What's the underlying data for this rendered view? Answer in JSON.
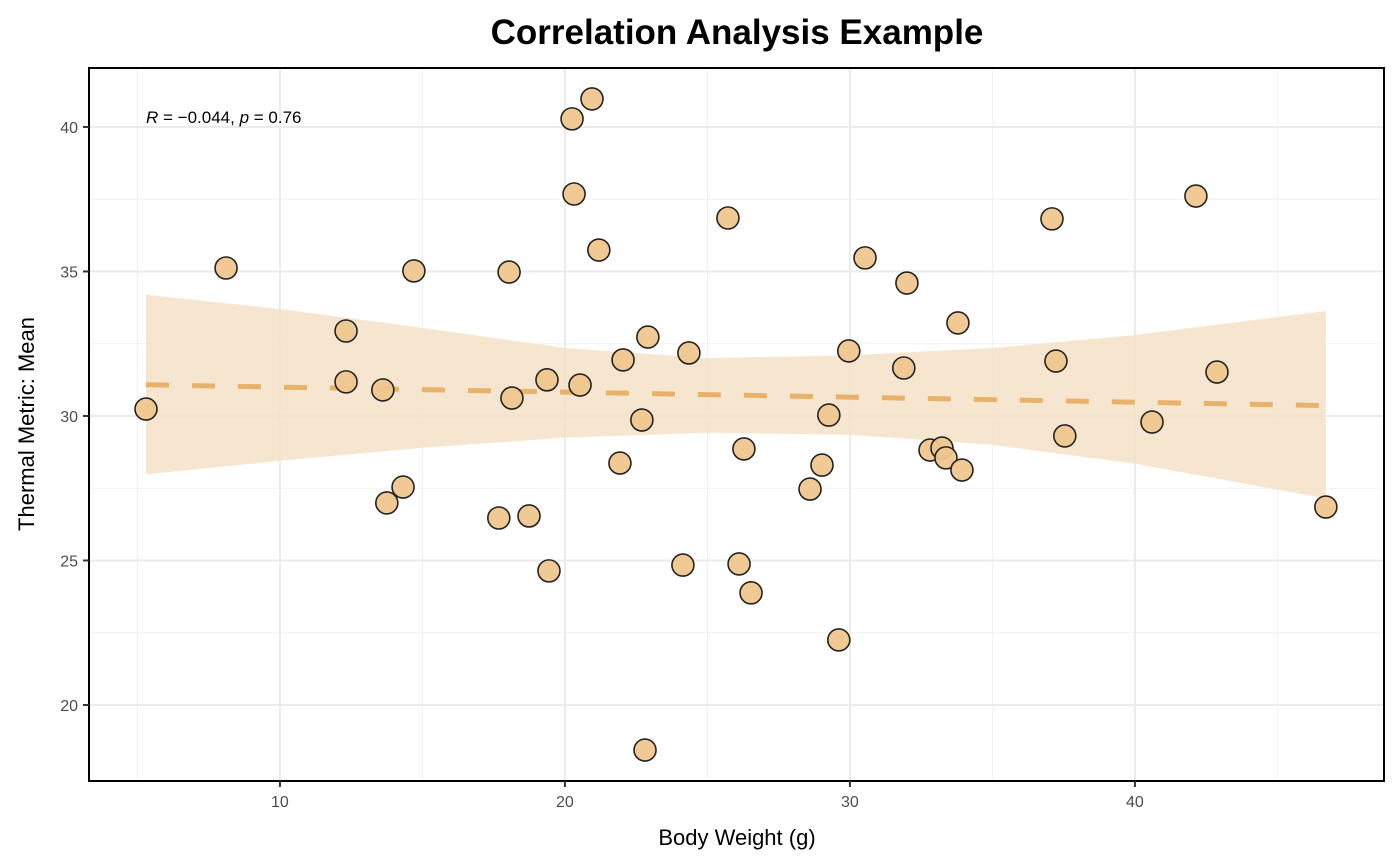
{
  "chart_data": {
    "type": "scatter",
    "title": "Correlation Analysis Example",
    "xlabel": "Body Weight (g)",
    "ylabel": "Thermal Metric: Mean",
    "xlim": [
      3.3,
      48.74
    ],
    "ylim": [
      17.37,
      42.04
    ],
    "xticks": [
      10,
      20,
      30,
      40
    ],
    "yticks": [
      20,
      25,
      30,
      35,
      40
    ],
    "x_minor_gridlines": [
      5,
      15,
      25,
      35,
      45
    ],
    "y_minor_gridlines": [
      22.5,
      27.5,
      32.5,
      37.5
    ],
    "grid": true,
    "legend": "none",
    "annotation": {
      "r_symbol": "R",
      "r_eq": " = ",
      "r_value": "−0.044",
      "sep": ", ",
      "p_symbol": "p",
      "p_eq": " = ",
      "p_value": "0.76",
      "x": 5.3,
      "y": 40
    },
    "colors": {
      "point_fill": "#EFC68E",
      "point_stroke": "#222222",
      "trend_line": "#E9B26A",
      "ribbon": "#F5E2C8"
    },
    "trend_line": {
      "style": "dashed",
      "x": [
        5.3,
        46.7
      ],
      "y": [
        31.08,
        30.36
      ]
    },
    "confidence_band": {
      "x": [
        5.3,
        10,
        15,
        20,
        25,
        30,
        35,
        40,
        46.7
      ],
      "lower": [
        27.98,
        28.45,
        28.9,
        29.25,
        29.42,
        29.35,
        29.0,
        28.35,
        27.15
      ],
      "upper": [
        34.2,
        33.7,
        33.05,
        32.35,
        32.0,
        32.1,
        32.35,
        32.8,
        33.63
      ]
    },
    "points": [
      {
        "x": 5.3,
        "y": 30.24
      },
      {
        "x": 8.11,
        "y": 35.12
      },
      {
        "x": 12.32,
        "y": 32.94
      },
      {
        "x": 12.32,
        "y": 31.18
      },
      {
        "x": 13.61,
        "y": 30.9
      },
      {
        "x": 13.75,
        "y": 26.99
      },
      {
        "x": 14.32,
        "y": 27.54
      },
      {
        "x": 14.7,
        "y": 35.02
      },
      {
        "x": 17.68,
        "y": 26.47
      },
      {
        "x": 18.04,
        "y": 34.98
      },
      {
        "x": 18.14,
        "y": 30.62
      },
      {
        "x": 18.74,
        "y": 26.54
      },
      {
        "x": 19.37,
        "y": 31.25
      },
      {
        "x": 19.44,
        "y": 24.64
      },
      {
        "x": 20.25,
        "y": 40.28
      },
      {
        "x": 20.32,
        "y": 37.68
      },
      {
        "x": 20.53,
        "y": 31.07
      },
      {
        "x": 20.95,
        "y": 40.97
      },
      {
        "x": 21.19,
        "y": 35.74
      },
      {
        "x": 21.93,
        "y": 28.37
      },
      {
        "x": 22.04,
        "y": 31.94
      },
      {
        "x": 22.7,
        "y": 29.86
      },
      {
        "x": 22.81,
        "y": 18.44
      },
      {
        "x": 22.91,
        "y": 32.73
      },
      {
        "x": 24.14,
        "y": 24.84
      },
      {
        "x": 24.35,
        "y": 32.18
      },
      {
        "x": 25.72,
        "y": 36.85
      },
      {
        "x": 26.11,
        "y": 24.88
      },
      {
        "x": 26.28,
        "y": 28.86
      },
      {
        "x": 26.53,
        "y": 23.88
      },
      {
        "x": 28.6,
        "y": 27.47
      },
      {
        "x": 29.02,
        "y": 28.3
      },
      {
        "x": 29.26,
        "y": 30.03
      },
      {
        "x": 29.61,
        "y": 22.25
      },
      {
        "x": 29.96,
        "y": 32.25
      },
      {
        "x": 30.53,
        "y": 35.47
      },
      {
        "x": 31.89,
        "y": 31.66
      },
      {
        "x": 32.0,
        "y": 34.6
      },
      {
        "x": 32.81,
        "y": 28.82
      },
      {
        "x": 33.23,
        "y": 28.89
      },
      {
        "x": 33.37,
        "y": 28.55
      },
      {
        "x": 33.79,
        "y": 33.22
      },
      {
        "x": 33.93,
        "y": 28.13
      },
      {
        "x": 37.09,
        "y": 36.82
      },
      {
        "x": 37.23,
        "y": 31.9
      },
      {
        "x": 37.54,
        "y": 29.31
      },
      {
        "x": 40.6,
        "y": 29.79
      },
      {
        "x": 42.14,
        "y": 37.61
      },
      {
        "x": 42.88,
        "y": 31.52
      },
      {
        "x": 46.7,
        "y": 26.85
      }
    ]
  }
}
